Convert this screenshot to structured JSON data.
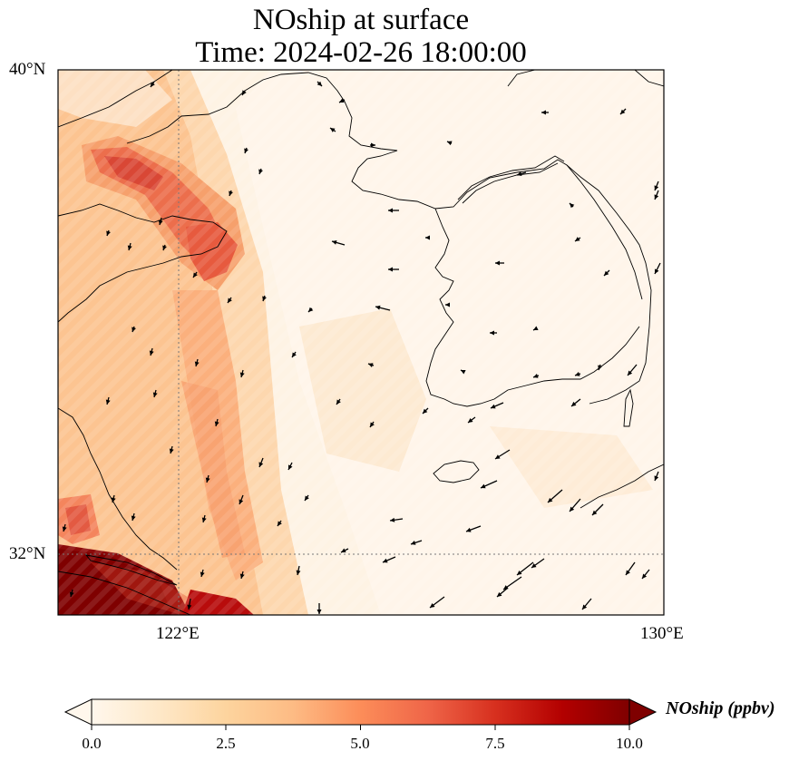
{
  "title": {
    "line1": "NOship at surface",
    "line2": "Time: 2024-02-26 18:00:00"
  },
  "map": {
    "lat_labels": [
      "40°N",
      "32°N"
    ],
    "lon_labels": [
      "122°E",
      "130°E"
    ],
    "extent": {
      "lon_min": 120,
      "lon_max": 130,
      "lat_min": 31,
      "lat_max": 40
    },
    "gridlines": {
      "lon": 122,
      "lat": 32,
      "style": "dotted"
    },
    "colormap": "OrRd",
    "features": [
      "coastlines",
      "wind-vectors"
    ]
  },
  "colorbar": {
    "label": "NOship (ppbv)",
    "ticks": [
      "0.0",
      "2.5",
      "5.0",
      "7.5",
      "10.0"
    ],
    "range": [
      0,
      10
    ],
    "extend": "both",
    "colors": [
      "#fff7ec",
      "#fee8c8",
      "#fdd49e",
      "#fdbb84",
      "#fc8d59",
      "#ef6548",
      "#d7301f",
      "#b30000",
      "#7f0000"
    ]
  }
}
